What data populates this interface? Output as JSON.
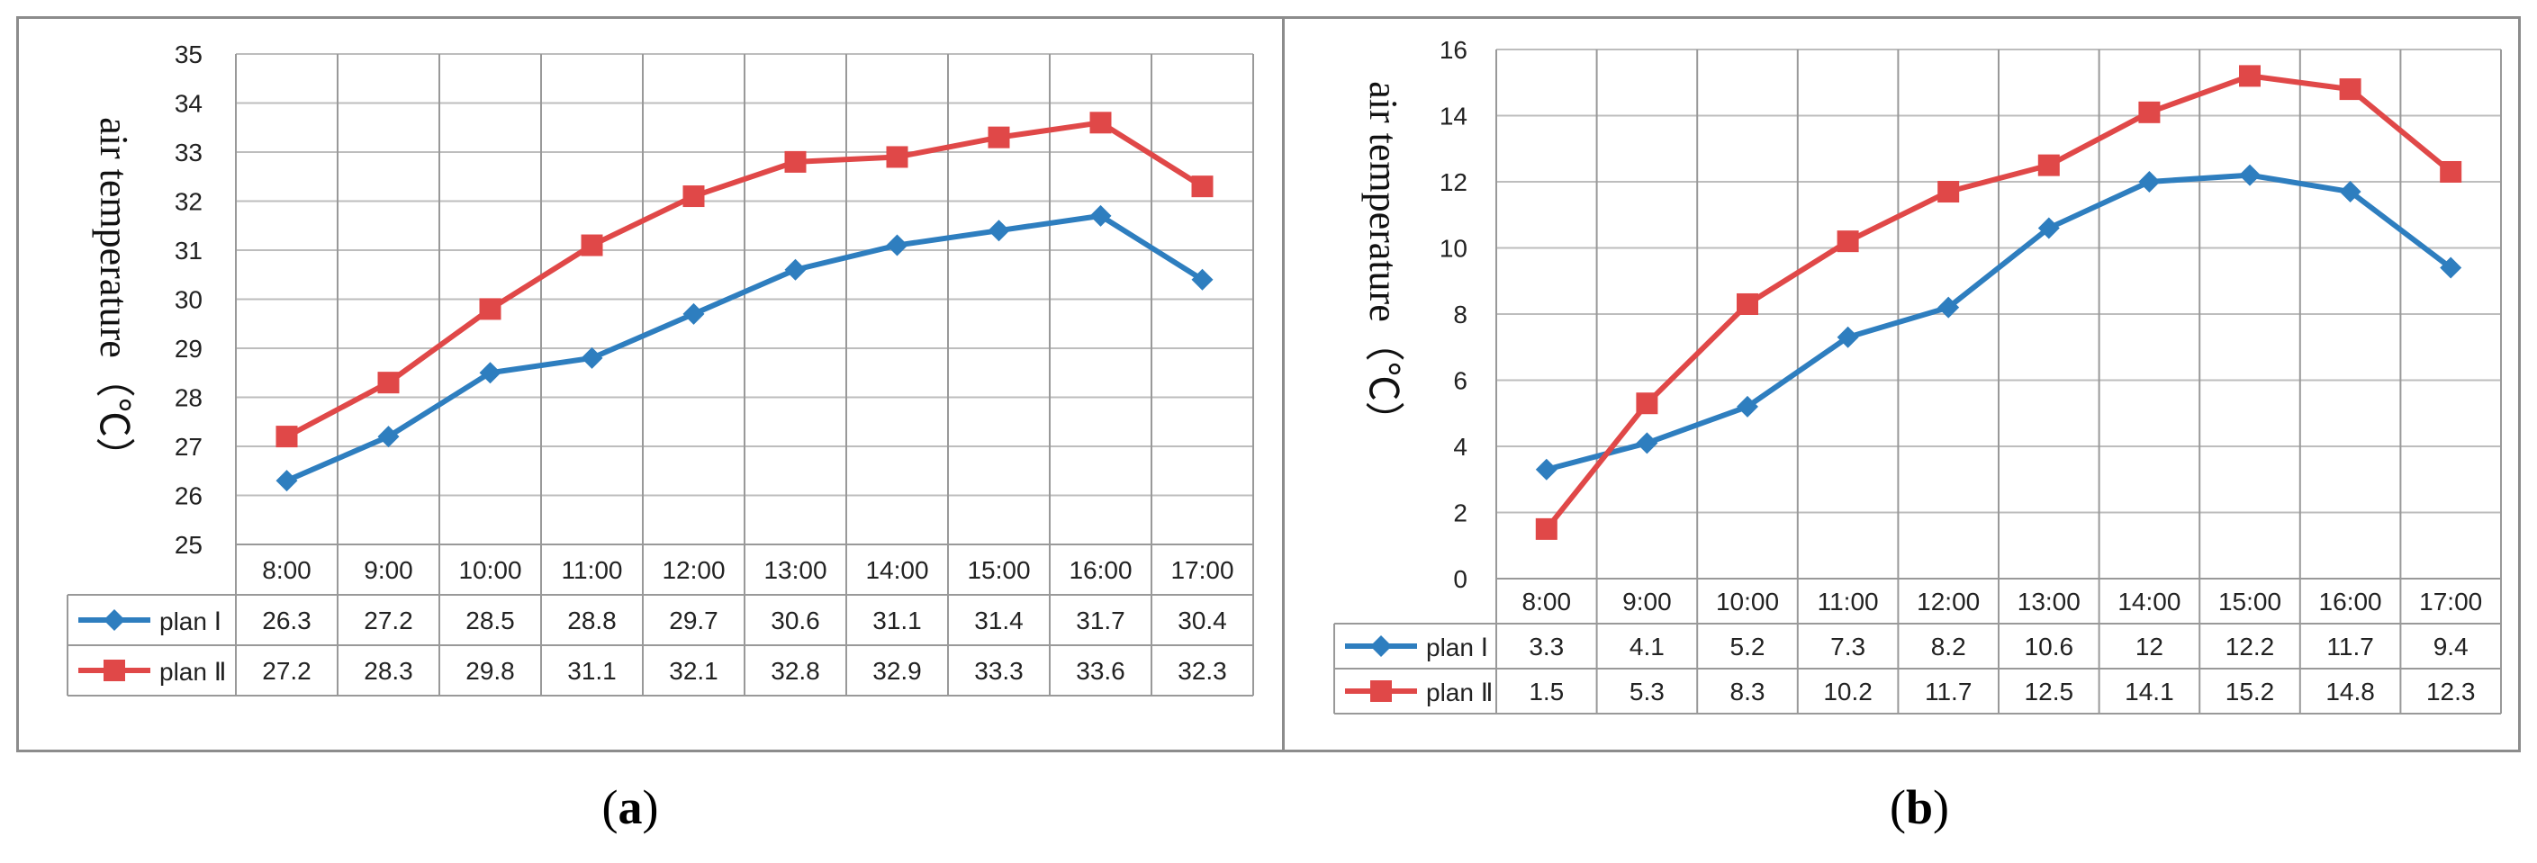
{
  "charts": [
    {
      "caption": "a",
      "chart_data": {
        "type": "line",
        "categories": [
          "8:00",
          "9:00",
          "10:00",
          "11:00",
          "12:00",
          "13:00",
          "14:00",
          "15:00",
          "16:00",
          "17:00"
        ],
        "series": [
          {
            "name": "plan Ⅰ",
            "color": "#2e7ebf",
            "marker": "diamond",
            "values": [
              "26.3",
              "27.2",
              "28.5",
              "28.8",
              "29.7",
              "30.6",
              "31.1",
              "31.4",
              "31.7",
              "30.4"
            ]
          },
          {
            "name": "plan Ⅱ",
            "color": "#e04848",
            "marker": "square",
            "values": [
              "27.2",
              "28.3",
              "29.8",
              "31.1",
              "32.1",
              "32.8",
              "32.9",
              "33.3",
              "33.6",
              "32.3"
            ]
          }
        ],
        "ylabel": "air temperature（℃）",
        "ylim": [
          25,
          35
        ],
        "yticks": [
          "25",
          "26",
          "27",
          "28",
          "29",
          "30",
          "31",
          "32",
          "33",
          "34",
          "35"
        ],
        "grid": true,
        "legend": "data-table"
      }
    },
    {
      "caption": "b",
      "chart_data": {
        "type": "line",
        "categories": [
          "8:00",
          "9:00",
          "10:00",
          "11:00",
          "12:00",
          "13:00",
          "14:00",
          "15:00",
          "16:00",
          "17:00"
        ],
        "series": [
          {
            "name": "plan Ⅰ",
            "color": "#2e7ebf",
            "marker": "diamond",
            "values": [
              "3.3",
              "4.1",
              "5.2",
              "7.3",
              "8.2",
              "10.6",
              "12",
              "12.2",
              "11.7",
              "9.4"
            ]
          },
          {
            "name": "plan Ⅱ",
            "color": "#e04848",
            "marker": "square",
            "values": [
              "1.5",
              "5.3",
              "8.3",
              "10.2",
              "11.7",
              "12.5",
              "14.1",
              "15.2",
              "14.8",
              "12.3"
            ]
          }
        ],
        "ylabel": "air temperature（℃）",
        "ylim": [
          0,
          16
        ],
        "yticks": [
          "0",
          "2",
          "4",
          "6",
          "8",
          "10",
          "12",
          "14",
          "16"
        ],
        "grid": true,
        "legend": "data-table"
      }
    }
  ]
}
